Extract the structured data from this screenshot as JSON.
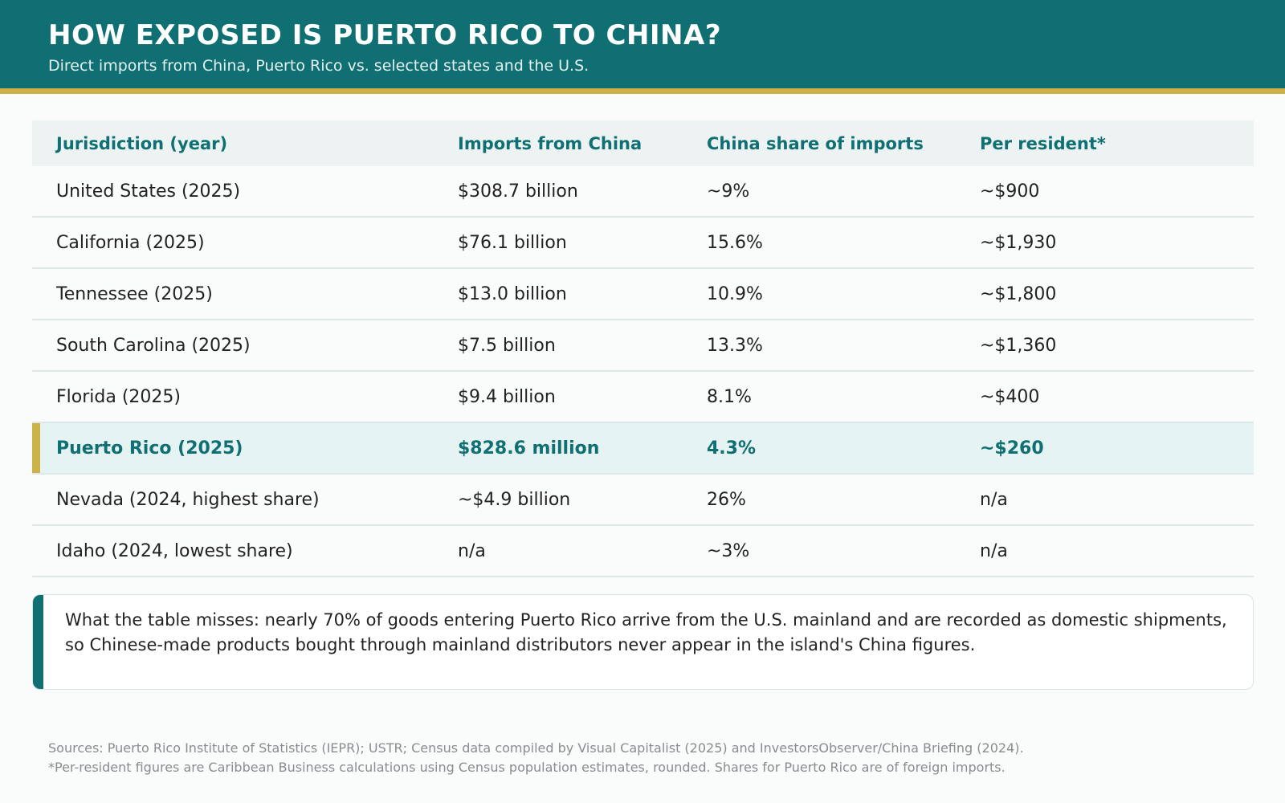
{
  "header": {
    "title": "HOW EXPOSED IS PUERTO RICO TO CHINA?",
    "subtitle": "Direct imports from China, Puerto Rico vs. selected states and the U.S."
  },
  "colors": {
    "header_bg": "#106f72",
    "accent_gold": "#cdb24a",
    "highlight_row": "#e6f3f3",
    "header_row": "#edf3f3"
  },
  "chart_data": {
    "type": "table",
    "columns": [
      "Jurisdiction (year)",
      "Imports from China",
      "China share of imports",
      "Per resident*"
    ],
    "rows": [
      [
        "United States (2025)",
        "$308.7 billion",
        "~9%",
        "~$900"
      ],
      [
        "California (2025)",
        "$76.1 billion",
        "15.6%",
        "~$1,930"
      ],
      [
        "Tennessee (2025)",
        "$13.0 billion",
        "10.9%",
        "~$1,800"
      ],
      [
        "South Carolina (2025)",
        "$7.5 billion",
        "13.3%",
        "~$1,360"
      ],
      [
        "Florida (2025)",
        "$9.4 billion",
        "8.1%",
        "~$400"
      ],
      [
        "Puerto Rico (2025)",
        "$828.6 million",
        "4.3%",
        "~$260"
      ],
      [
        "Nevada (2024, highest share)",
        "~$4.9 billion",
        "26%",
        "n/a"
      ],
      [
        "Idaho (2024, lowest share)",
        "n/a",
        "~3%",
        "n/a"
      ]
    ],
    "highlighted_row": "Puerto Rico (2025)"
  },
  "note": {
    "text": "What the table misses: nearly 70% of goods entering Puerto Rico arrive from the U.S. mainland and are recorded as domestic shipments, so Chinese-made products bought through mainland distributors never appear in the island's China figures."
  },
  "footer": {
    "sources": "Sources: Puerto Rico Institute of Statistics (IEPR); USTR; Census data compiled by Visual Capitalist (2025) and InvestorsObserver/China Briefing (2024).",
    "footnote": "*Per-resident figures are Caribbean Business calculations using Census population estimates, rounded. Shares for Puerto Rico are of foreign imports."
  }
}
